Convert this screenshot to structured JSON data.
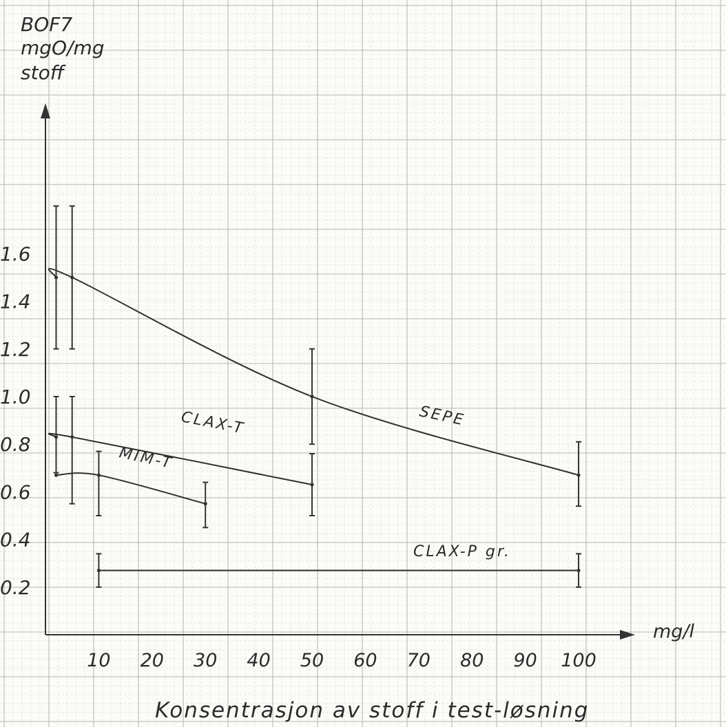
{
  "chart_data": {
    "type": "line",
    "ylabel_lines": [
      "BOF7",
      "mgO/mg",
      "stoff"
    ],
    "xunit": "mg/l",
    "xlabel": "Konsentrasjon av stoff i test-løsning",
    "xlim": [
      0,
      100
    ],
    "ylim": [
      0,
      2.0
    ],
    "x_ticks": [
      10,
      20,
      30,
      40,
      50,
      60,
      70,
      80,
      90,
      100
    ],
    "x_tick_labels": [
      "10",
      "20",
      "30",
      "40",
      "50",
      "60",
      "70",
      "80",
      "90",
      "100"
    ],
    "y_ticks": [
      0.2,
      0.4,
      0.6,
      0.8,
      1.0,
      1.2,
      1.4,
      1.6
    ],
    "y_tick_labels": [
      "0.2",
      "0.4",
      "0.6",
      "0.8",
      "1.0",
      "1.2",
      "1.4",
      "1.6"
    ],
    "grid": true,
    "series": [
      {
        "name": "SEPE",
        "x": [
          2,
          5,
          50,
          100
        ],
        "y": [
          1.5,
          1.5,
          1.0,
          0.67
        ],
        "error_low": [
          1.2,
          1.2,
          0.8,
          0.54
        ],
        "error_high": [
          1.8,
          1.8,
          1.2,
          0.81
        ]
      },
      {
        "name": "CLAX-T",
        "x": [
          2,
          5,
          50
        ],
        "y": [
          0.83,
          0.83,
          0.63
        ],
        "error_low": [
          0.68,
          0.55,
          0.5
        ],
        "error_high": [
          1.0,
          1.0,
          0.76
        ]
      },
      {
        "name": "MIM-T",
        "x": [
          2,
          10,
          30
        ],
        "y": [
          0.67,
          0.67,
          0.55
        ],
        "error_low": [
          0.67,
          0.5,
          0.45
        ],
        "error_high": [
          0.67,
          0.77,
          0.64
        ]
      },
      {
        "name": "CLAX-P gr.",
        "x": [
          10,
          100
        ],
        "y": [
          0.27,
          0.27
        ],
        "error_low": [
          0.2,
          0.2
        ],
        "error_high": [
          0.34,
          0.34
        ]
      }
    ]
  }
}
